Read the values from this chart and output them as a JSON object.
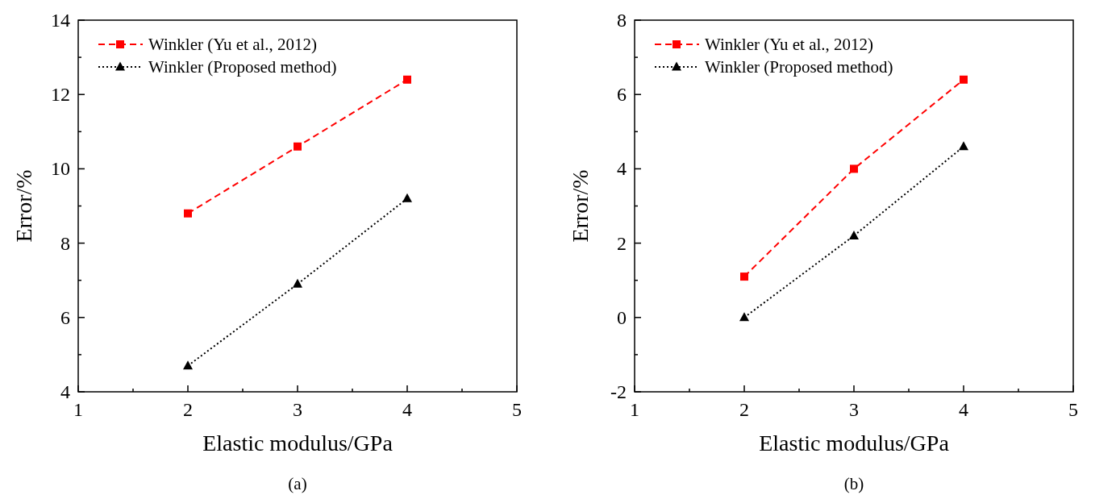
{
  "chart_data": [
    {
      "type": "line",
      "xlabel": "Elastic modulus/GPa",
      "ylabel": "Error/%",
      "x": [
        2,
        3,
        4
      ],
      "xlim": [
        1,
        5
      ],
      "ylim": [
        4,
        14
      ],
      "xticks": [
        1,
        {
          "value": 1.5,
          "label": null
        },
        2,
        {
          "value": 2.5,
          "label": null
        },
        3,
        {
          "value": 3.5,
          "label": null
        },
        4,
        {
          "value": 4.5,
          "label": null
        },
        5
      ],
      "yticks": [
        4,
        {
          "value": 5,
          "label": null
        },
        6,
        {
          "value": 7,
          "label": null
        },
        8,
        {
          "value": 9,
          "label": null
        },
        10,
        {
          "value": 11,
          "label": null
        },
        12,
        {
          "value": 13,
          "label": null
        },
        14
      ],
      "legend": "top left",
      "grid": false,
      "series": [
        {
          "name": "Winkler (Yu et al., 2012)",
          "color": "#ff0000",
          "values": [
            8.8,
            10.6,
            12.4
          ],
          "marker": "square",
          "line_style": "dashed"
        },
        {
          "name": "Winkler (Proposed method)",
          "color": "#000000",
          "values": [
            4.7,
            6.9,
            9.2
          ],
          "marker": "triangle",
          "line_style": "dotted"
        }
      ],
      "annotations": [
        "(a)"
      ]
    },
    {
      "type": "line",
      "xlabel": "Elastic modulus/GPa",
      "ylabel": "Error/%",
      "x": [
        2,
        3,
        4
      ],
      "xlim": [
        1,
        5
      ],
      "ylim": [
        -2,
        8
      ],
      "xticks": [
        1,
        {
          "value": 1.5,
          "label": null
        },
        2,
        {
          "value": 2.5,
          "label": null
        },
        3,
        {
          "value": 3.5,
          "label": null
        },
        4,
        {
          "value": 4.5,
          "label": null
        },
        5
      ],
      "yticks": [
        -2,
        {
          "value": -1,
          "label": null
        },
        0,
        {
          "value": 1,
          "label": null
        },
        2,
        {
          "value": 3,
          "label": null
        },
        4,
        {
          "value": 5,
          "label": null
        },
        6,
        {
          "value": 7,
          "label": null
        },
        8
      ],
      "legend": "top left",
      "grid": false,
      "series": [
        {
          "name": "Winkler (Yu et al., 2012)",
          "color": "#ff0000",
          "values": [
            1.1,
            4.0,
            6.4
          ],
          "marker": "square",
          "line_style": "dashed"
        },
        {
          "name": "Winkler (Proposed method)",
          "color": "#000000",
          "values": [
            0,
            2.2,
            4.6
          ],
          "marker": "triangle",
          "line_style": "dotted"
        }
      ],
      "annotations": [
        "(b)"
      ]
    }
  ]
}
